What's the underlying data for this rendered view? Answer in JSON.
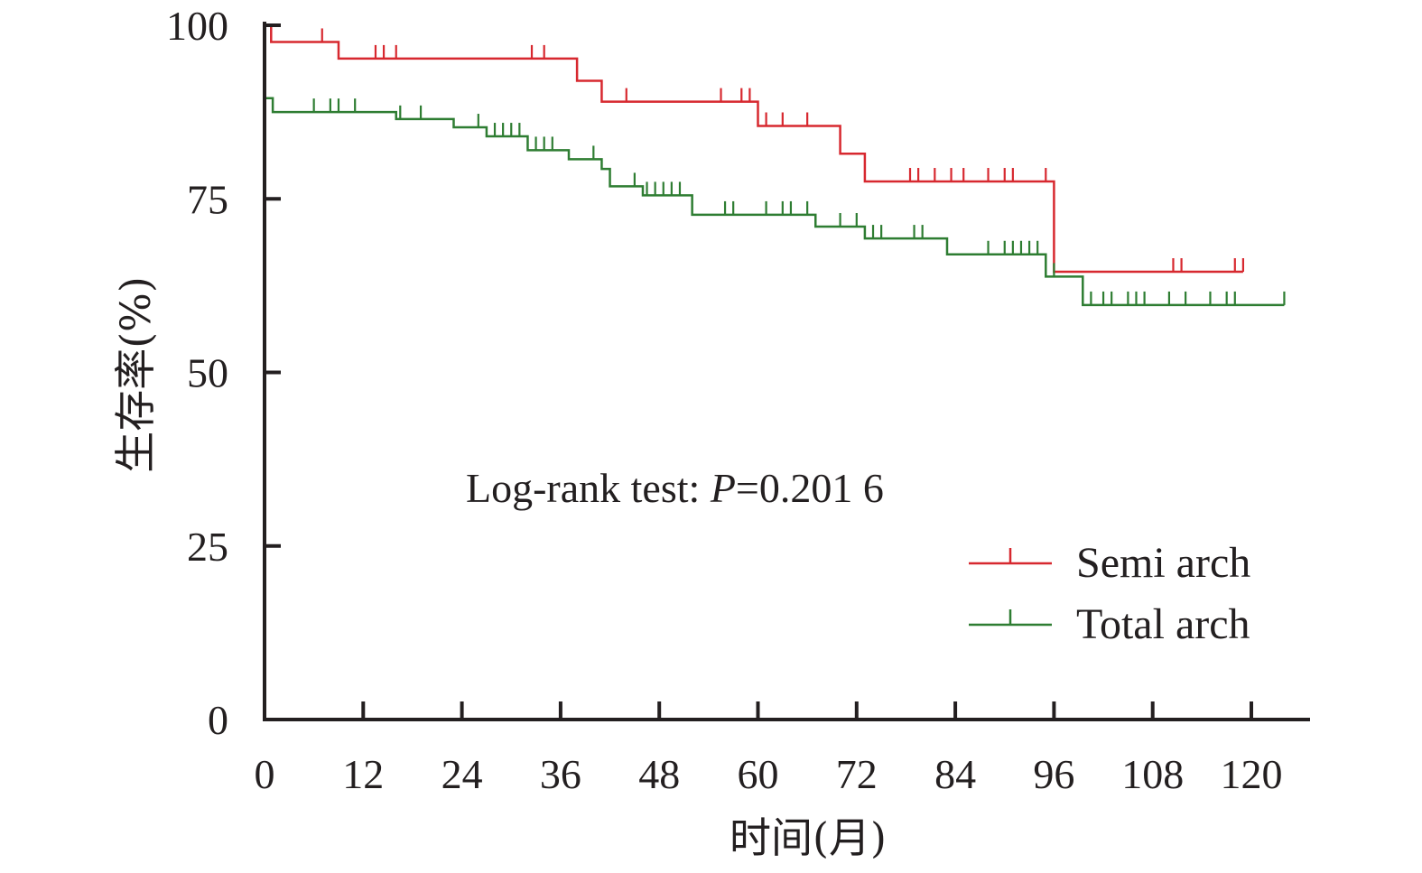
{
  "chart_data": {
    "type": "line",
    "subtype": "kaplan-meier",
    "title": "",
    "xlabel": "时间(月)",
    "ylabel": "生存率(%)",
    "xlim": [
      0,
      126
    ],
    "ylim": [
      0,
      100
    ],
    "x_ticks": [
      0,
      12,
      24,
      36,
      48,
      60,
      72,
      84,
      96,
      108,
      120
    ],
    "y_ticks": [
      0,
      25,
      50,
      75,
      100
    ],
    "annotation": {
      "prefix": "Log-rank test: ",
      "p_symbol": "P",
      "value": "=0.201 6"
    },
    "legend_position": "bottom-right",
    "series": [
      {
        "name": "Semi arch",
        "color": "#d7282f",
        "steps": [
          [
            0,
            100
          ],
          [
            0.8,
            97.6
          ],
          [
            9,
            95.2
          ],
          [
            38,
            92.0
          ],
          [
            41,
            89.0
          ],
          [
            60,
            85.5
          ],
          [
            70,
            81.5
          ],
          [
            73,
            77.5
          ],
          [
            96,
            64.5
          ],
          [
            119,
            64.5
          ]
        ],
        "censored": [
          [
            7,
            97.6
          ],
          [
            13.5,
            95.2
          ],
          [
            14.5,
            95.2
          ],
          [
            16,
            95.2
          ],
          [
            32.5,
            95.2
          ],
          [
            34,
            95.2
          ],
          [
            44,
            89.0
          ],
          [
            55.5,
            89.0
          ],
          [
            58,
            89.0
          ],
          [
            59,
            89.0
          ],
          [
            61,
            85.5
          ],
          [
            63,
            85.5
          ],
          [
            66,
            85.5
          ],
          [
            78.5,
            77.5
          ],
          [
            79.5,
            77.5
          ],
          [
            81.5,
            77.5
          ],
          [
            83.5,
            77.5
          ],
          [
            85,
            77.5
          ],
          [
            88,
            77.5
          ],
          [
            90,
            77.5
          ],
          [
            91,
            77.5
          ],
          [
            95,
            77.5
          ],
          [
            110.5,
            64.5
          ],
          [
            111.5,
            64.5
          ],
          [
            118,
            64.5
          ],
          [
            119,
            64.5
          ]
        ]
      },
      {
        "name": "Total arch",
        "color": "#2e7d32",
        "steps": [
          [
            0,
            89.5
          ],
          [
            1,
            87.5
          ],
          [
            16,
            86.5
          ],
          [
            23,
            85.3
          ],
          [
            27,
            84.0
          ],
          [
            32,
            82.0
          ],
          [
            37,
            80.7
          ],
          [
            41,
            79.3
          ],
          [
            42,
            76.8
          ],
          [
            46,
            75.5
          ],
          [
            52,
            72.7
          ],
          [
            67,
            71.0
          ],
          [
            73,
            69.3
          ],
          [
            83,
            67.0
          ],
          [
            95,
            63.8
          ],
          [
            99.5,
            59.7
          ],
          [
            124,
            59.7
          ]
        ],
        "censored": [
          [
            6,
            87.5
          ],
          [
            8,
            87.5
          ],
          [
            9,
            87.5
          ],
          [
            11,
            87.5
          ],
          [
            16.5,
            86.5
          ],
          [
            19,
            86.5
          ],
          [
            26,
            85.3
          ],
          [
            28,
            84.0
          ],
          [
            29,
            84.0
          ],
          [
            30,
            84.0
          ],
          [
            31,
            84.0
          ],
          [
            33,
            82.0
          ],
          [
            34,
            82.0
          ],
          [
            35,
            82.0
          ],
          [
            40,
            80.7
          ],
          [
            45,
            76.8
          ],
          [
            46.5,
            75.5
          ],
          [
            47.5,
            75.5
          ],
          [
            48.5,
            75.5
          ],
          [
            49.5,
            75.5
          ],
          [
            50.5,
            75.5
          ],
          [
            56,
            72.7
          ],
          [
            57,
            72.7
          ],
          [
            61,
            72.7
          ],
          [
            63,
            72.7
          ],
          [
            64,
            72.7
          ],
          [
            66,
            72.7
          ],
          [
            70,
            71.0
          ],
          [
            72,
            71.0
          ],
          [
            74,
            69.3
          ],
          [
            75,
            69.3
          ],
          [
            79,
            69.3
          ],
          [
            80,
            69.3
          ],
          [
            88,
            67.0
          ],
          [
            90,
            67.0
          ],
          [
            91,
            67.0
          ],
          [
            92,
            67.0
          ],
          [
            93,
            67.0
          ],
          [
            94,
            67.0
          ],
          [
            96,
            63.8
          ],
          [
            100.5,
            59.7
          ],
          [
            102,
            59.7
          ],
          [
            103,
            59.7
          ],
          [
            105,
            59.7
          ],
          [
            106,
            59.7
          ],
          [
            107,
            59.7
          ],
          [
            110,
            59.7
          ],
          [
            112,
            59.7
          ],
          [
            115,
            59.7
          ],
          [
            117,
            59.7
          ],
          [
            118,
            59.7
          ],
          [
            124,
            59.7
          ]
        ]
      }
    ]
  }
}
